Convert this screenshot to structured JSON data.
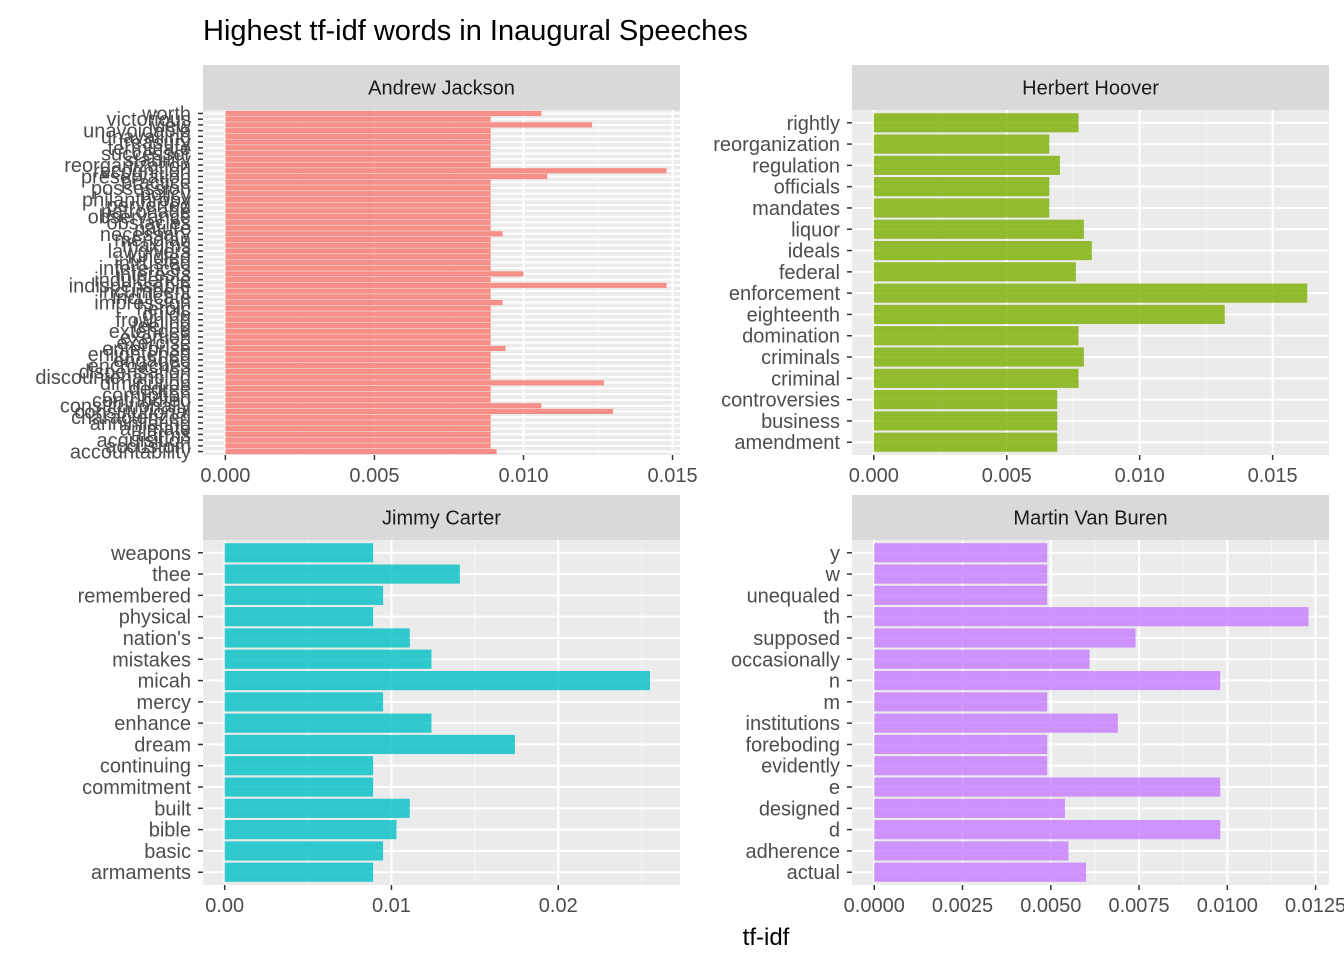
{
  "title": "Highest tf-idf words in Inaugural Speeches",
  "chart_data": {
    "type": "bar",
    "orientation": "horizontal",
    "title": "Highest tf-idf words in Inaugural Speeches",
    "xlabel": "tf-idf",
    "ylabel": "",
    "grid": true,
    "legend": "none",
    "facets": [
      {
        "name": "Andrew Jackson",
        "color": "#F8766D",
        "xlim": [
          -0.00075,
          0.01525
        ],
        "xticks": [
          0,
          0.005,
          0.01,
          0.015
        ],
        "xtick_labels": [
          "0.000",
          "0.005",
          "0.010",
          "0.015"
        ],
        "categories": [
          "worth",
          "victorious",
          "view",
          "unavoidable",
          "unavailing",
          "treasury",
          "terminate",
          "successor",
          "stability",
          "reorganization",
          "recognition",
          "preservation",
          "practice",
          "possession",
          "policy",
          "philanthropy",
          "perverted",
          "patronage",
          "observance",
          "obstacles",
          "nature",
          "necessary",
          "meridian",
          "maxims",
          "lawgivers",
          "kindled",
          "intrusted",
          "inferences",
          "interests",
          "indulgence",
          "indispensable",
          "incumbent",
          "inculcate",
          "impression",
          "heroic",
          "guide",
          "frowning",
          "feeling",
          "extended",
          "exertion",
          "exercise",
          "enterprise",
          "enlightened",
          "engaged",
          "encroaches",
          "dispensation",
          "discountenancing",
          "diminution",
          "degree",
          "corruption",
          "contributed",
          "constitutionally",
          "constitutional",
          "characterized",
          "annihilating",
          "animate",
          "alarms",
          "acquisition",
          "accustom",
          "accountability"
        ],
        "values": [
          0.0106,
          0.0089,
          0.0123,
          0.0089,
          0.0089,
          0.0089,
          0.0089,
          0.0089,
          0.0089,
          0.0089,
          0.0148,
          0.0108,
          0.0089,
          0.0089,
          0.0089,
          0.0089,
          0.0089,
          0.0089,
          0.0089,
          0.0089,
          0.0089,
          0.0093,
          0.0089,
          0.0089,
          0.0089,
          0.0089,
          0.0089,
          0.0089,
          0.01,
          0.0089,
          0.0148,
          0.0089,
          0.0089,
          0.0093,
          0.0089,
          0.0089,
          0.0089,
          0.0089,
          0.0089,
          0.0089,
          0.0089,
          0.0094,
          0.0089,
          0.0089,
          0.0089,
          0.0089,
          0.0089,
          0.0127,
          0.0089,
          0.0089,
          0.0089,
          0.0106,
          0.013,
          0.0089,
          0.0089,
          0.0089,
          0.0089,
          0.0089,
          0.0089,
          0.0091
        ]
      },
      {
        "name": "Herbert Hoover",
        "color": "#7CAE00",
        "xlim": [
          -0.00082,
          0.01712
        ],
        "xticks": [
          0,
          0.005,
          0.01,
          0.015
        ],
        "xtick_labels": [
          "0.000",
          "0.005",
          "0.010",
          "0.015"
        ],
        "categories": [
          "rightly",
          "reorganization",
          "regulation",
          "officials",
          "mandates",
          "liquor",
          "ideals",
          "federal",
          "enforcement",
          "eighteenth",
          "domination",
          "criminals",
          "criminal",
          "controversies",
          "business",
          "amendment"
        ],
        "values": [
          0.0077,
          0.0066,
          0.007,
          0.0066,
          0.0066,
          0.0079,
          0.0082,
          0.0076,
          0.0163,
          0.0132,
          0.0077,
          0.0079,
          0.0077,
          0.0069,
          0.0069,
          0.0069
        ]
      },
      {
        "name": "Jimmy Carter",
        "color": "#00BFC4",
        "xlim": [
          -0.0013,
          0.0273
        ],
        "xticks": [
          0,
          0.01,
          0.02
        ],
        "xtick_labels": [
          "0.00",
          "0.01",
          "0.02"
        ],
        "categories": [
          "weapons",
          "thee",
          "remembered",
          "physical",
          "nation's",
          "mistakes",
          "micah",
          "mercy",
          "enhance",
          "dream",
          "continuing",
          "commitment",
          "built",
          "bible",
          "basic",
          "armaments"
        ],
        "values": [
          0.0089,
          0.0141,
          0.0095,
          0.0089,
          0.0111,
          0.0124,
          0.0255,
          0.0095,
          0.0124,
          0.0174,
          0.0089,
          0.0089,
          0.0111,
          0.0103,
          0.0095,
          0.0089
        ]
      },
      {
        "name": "Martin Van Buren",
        "color": "#C77CFF",
        "xlim": [
          -0.00063,
          0.01288
        ],
        "xticks": [
          0,
          0.0025,
          0.005,
          0.0075,
          0.01,
          0.0125
        ],
        "xtick_labels": [
          "0.0000",
          "0.0025",
          "0.0050",
          "0.0075",
          "0.0100",
          "0.0125"
        ],
        "categories": [
          "y",
          "w",
          "unequaled",
          "th",
          "supposed",
          "occasionally",
          "n",
          "m",
          "institutions",
          "foreboding",
          "evidently",
          "e",
          "designed",
          "d",
          "adherence",
          "actual"
        ],
        "values": [
          0.0049,
          0.0049,
          0.0049,
          0.0123,
          0.0074,
          0.0061,
          0.0098,
          0.0049,
          0.0069,
          0.0049,
          0.0049,
          0.0098,
          0.0054,
          0.0098,
          0.0055,
          0.006
        ]
      }
    ]
  }
}
